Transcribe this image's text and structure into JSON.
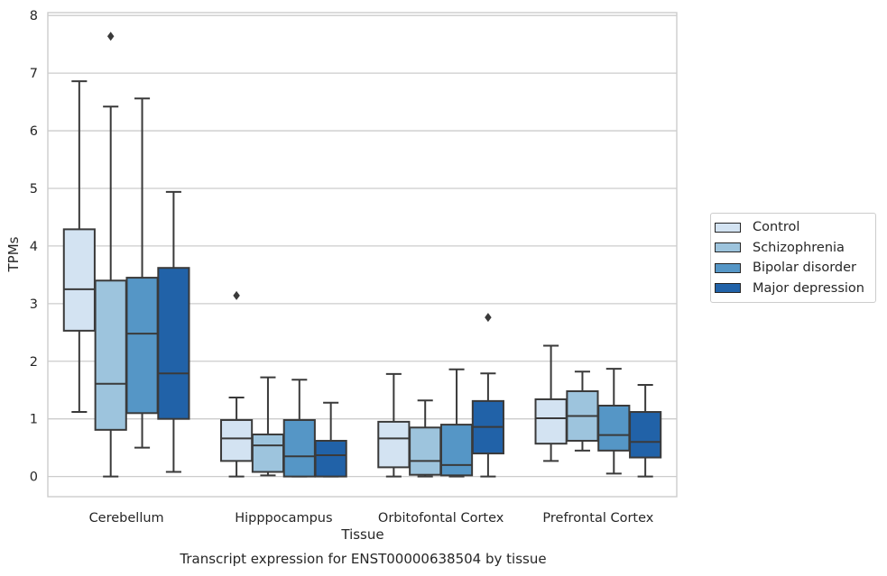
{
  "chart_data": {
    "type": "box",
    "title": "Transcript expression for ENST00000638504 by tissue",
    "xlabel": "Tissue",
    "ylabel": "TPMs",
    "ylim": [
      -0.35,
      8.05
    ],
    "yticks": [
      "0",
      "1",
      "2",
      "3",
      "4",
      "5",
      "6",
      "7",
      "8"
    ],
    "grid": "horizontal",
    "legend_position": "center-right",
    "categories": [
      "Cerebellum",
      "Hipppocampus",
      "Orbitofontal Cortex",
      "Prefrontal Cortex"
    ],
    "series": [
      {
        "name": "Control",
        "color": "#d3e3f2",
        "boxes": [
          {
            "whisker_low": 1.12,
            "q1": 2.53,
            "median": 3.25,
            "q3": 4.29,
            "whisker_high": 6.86,
            "outliers": []
          },
          {
            "whisker_low": 0.0,
            "q1": 0.27,
            "median": 0.66,
            "q3": 0.98,
            "whisker_high": 1.37,
            "outliers": [
              3.14
            ]
          },
          {
            "whisker_low": 0.0,
            "q1": 0.16,
            "median": 0.66,
            "q3": 0.95,
            "whisker_high": 1.78,
            "outliers": []
          },
          {
            "whisker_low": 0.27,
            "q1": 0.57,
            "median": 1.01,
            "q3": 1.34,
            "whisker_high": 2.27,
            "outliers": []
          }
        ]
      },
      {
        "name": "Schizophrenia",
        "color": "#9dc4dd",
        "boxes": [
          {
            "whisker_low": 0.0,
            "q1": 0.81,
            "median": 1.61,
            "q3": 3.4,
            "whisker_high": 6.42,
            "outliers": [
              7.64
            ]
          },
          {
            "whisker_low": 0.02,
            "q1": 0.08,
            "median": 0.54,
            "q3": 0.73,
            "whisker_high": 1.72,
            "outliers": []
          },
          {
            "whisker_low": 0.0,
            "q1": 0.03,
            "median": 0.27,
            "q3": 0.85,
            "whisker_high": 1.32,
            "outliers": []
          },
          {
            "whisker_low": 0.45,
            "q1": 0.62,
            "median": 1.05,
            "q3": 1.48,
            "whisker_high": 1.82,
            "outliers": []
          }
        ]
      },
      {
        "name": "Bipolar disorder",
        "color": "#5596c6",
        "boxes": [
          {
            "whisker_low": 0.5,
            "q1": 1.1,
            "median": 2.48,
            "q3": 3.45,
            "whisker_high": 6.56,
            "outliers": []
          },
          {
            "whisker_low": 0.0,
            "q1": 0.0,
            "median": 0.35,
            "q3": 0.98,
            "whisker_high": 1.68,
            "outliers": []
          },
          {
            "whisker_low": 0.0,
            "q1": 0.02,
            "median": 0.2,
            "q3": 0.9,
            "whisker_high": 1.86,
            "outliers": []
          },
          {
            "whisker_low": 0.05,
            "q1": 0.45,
            "median": 0.72,
            "q3": 1.23,
            "whisker_high": 1.87,
            "outliers": []
          }
        ]
      },
      {
        "name": "Major depression",
        "color": "#2162a8",
        "boxes": [
          {
            "whisker_low": 0.08,
            "q1": 1.0,
            "median": 1.79,
            "q3": 3.62,
            "whisker_high": 4.94,
            "outliers": []
          },
          {
            "whisker_low": 0.0,
            "q1": 0.0,
            "median": 0.37,
            "q3": 0.62,
            "whisker_high": 1.28,
            "outliers": []
          },
          {
            "whisker_low": 0.0,
            "q1": 0.4,
            "median": 0.86,
            "q3": 1.31,
            "whisker_high": 1.79,
            "outliers": [
              2.76
            ]
          },
          {
            "whisker_low": 0.0,
            "q1": 0.33,
            "median": 0.6,
            "q3": 1.12,
            "whisker_high": 1.59,
            "outliers": []
          }
        ]
      }
    ]
  },
  "colors": {
    "grid": "#cccccc",
    "spine": "#cccccc",
    "line": "#3a3a3a"
  }
}
